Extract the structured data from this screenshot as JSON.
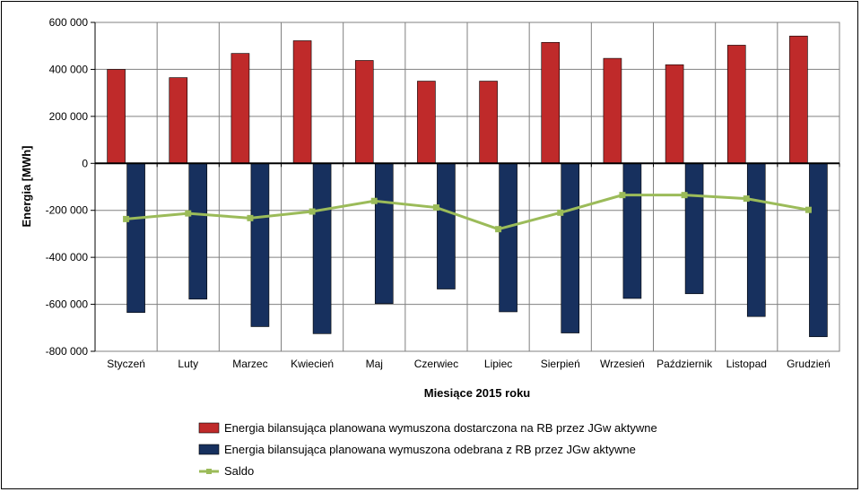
{
  "chart_data": {
    "type": "bar",
    "title": "",
    "xlabel": "Miesiące 2015  roku",
    "ylabel": "Energia [MWh]",
    "ylim": [
      -800000,
      600000
    ],
    "yticks": [
      600000,
      400000,
      200000,
      0,
      -200000,
      -400000,
      -600000,
      -800000
    ],
    "ytick_labels": [
      "600 000",
      "400 000",
      "200 000",
      "0",
      "-200 000",
      "-400 000",
      "-600 000",
      "-800 000"
    ],
    "grid": true,
    "legend_position": "bottom",
    "categories": [
      "Styczeń",
      "Luty",
      "Marzec",
      "Kwiecień",
      "Maj",
      "Czerwiec",
      "Lipiec",
      "Sierpień",
      "Wrzesień",
      "Październik",
      "Listopad",
      "Grudzień"
    ],
    "series": [
      {
        "name": "Energia bilansująca planowana wymuszona dostarczona na RB przez JGw aktywne",
        "type": "bar",
        "color": "#BF2A2A",
        "values": [
          400000,
          365000,
          468000,
          522000,
          438000,
          350000,
          350000,
          515000,
          447000,
          420000,
          503000,
          542000
        ]
      },
      {
        "name": "Energia bilansująca planowana wymuszona odebrana z RB przez JGw aktywne",
        "type": "bar",
        "color": "#17305E",
        "values": [
          -635000,
          -578000,
          -695000,
          -725000,
          -597000,
          -535000,
          -632000,
          -722000,
          -575000,
          -555000,
          -652000,
          -738000
        ]
      },
      {
        "name": "Saldo",
        "type": "line",
        "color": "#9BBB59",
        "values": [
          -237000,
          -213000,
          -233000,
          -205000,
          -160000,
          -188000,
          -280000,
          -210000,
          -135000,
          -135000,
          -150000,
          -198000
        ]
      }
    ]
  }
}
